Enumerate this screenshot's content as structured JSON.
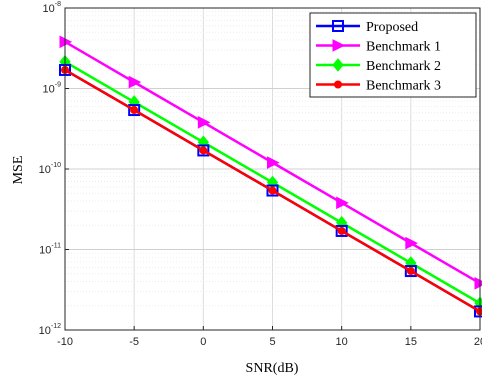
{
  "chart_data": {
    "type": "line",
    "xlabel": "SNR(dB)",
    "ylabel": "MSE",
    "yscale": "log",
    "xlim": [
      -10,
      20
    ],
    "ylim": [
      1e-12,
      1e-08
    ],
    "grid": true,
    "legend_position": "top-right",
    "x": [
      -10,
      -5,
      0,
      5,
      10,
      15,
      20
    ],
    "x_tick_labels": [
      "-10",
      "-5",
      "0",
      "5",
      "10",
      "15",
      "20"
    ],
    "y_ticks": [
      {
        "base": "10",
        "exp": "-12"
      },
      {
        "base": "10",
        "exp": "-11"
      },
      {
        "base": "10",
        "exp": "-10"
      },
      {
        "base": "10",
        "exp": "-9"
      },
      {
        "base": "10",
        "exp": "-8"
      }
    ],
    "series": [
      {
        "name": "Proposed",
        "color": "#0000FF",
        "marker": "square",
        "values": [
          1.7e-09,
          5.4e-10,
          1.7e-10,
          5.4e-11,
          1.7e-11,
          5.4e-12,
          1.7e-12
        ]
      },
      {
        "name": "Benchmark 1",
        "color": "#FF00FF",
        "marker": "triangle-right",
        "values": [
          3.8e-09,
          1.2e-09,
          3.8e-10,
          1.2e-10,
          3.8e-11,
          1.2e-11,
          3.8e-12
        ]
      },
      {
        "name": "Benchmark 2",
        "color": "#00FF00",
        "marker": "diamond",
        "values": [
          2.15e-09,
          6.8e-10,
          2.15e-10,
          6.8e-11,
          2.15e-11,
          6.8e-12,
          2.15e-12
        ]
      },
      {
        "name": "Benchmark 3",
        "color": "#FF0000",
        "marker": "circle",
        "values": [
          1.7e-09,
          5.4e-10,
          1.7e-10,
          5.4e-11,
          1.7e-11,
          5.4e-12,
          1.7e-12
        ]
      }
    ]
  }
}
